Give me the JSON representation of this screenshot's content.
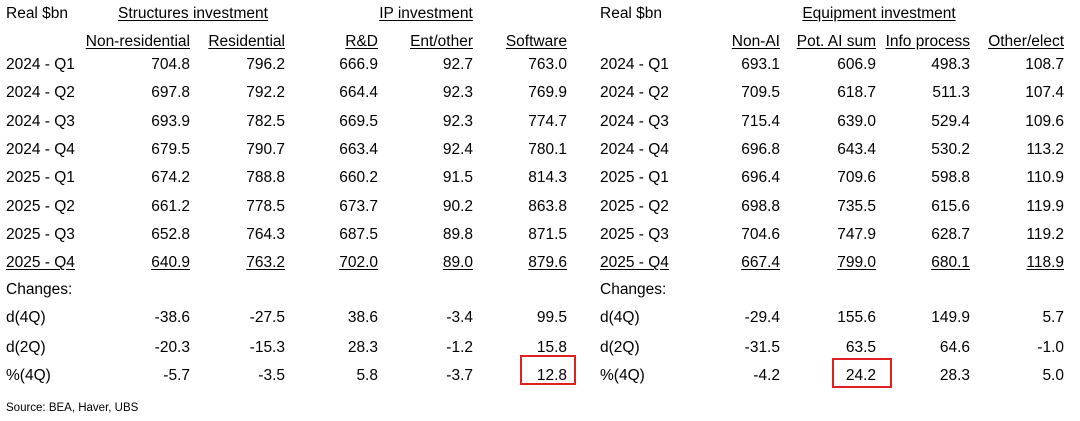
{
  "left_table": {
    "corner_label": "Real $bn",
    "groups": [
      "Structures investment",
      "IP investment"
    ],
    "columns": [
      "Non-residential",
      "Residential",
      "R&D",
      "Ent/other",
      "Software"
    ],
    "rows": [
      {
        "label": "2024 - Q1",
        "values": [
          "704.8",
          "796.2",
          "666.9",
          "92.7",
          "763.0"
        ]
      },
      {
        "label": "2024 - Q2",
        "values": [
          "697.8",
          "792.2",
          "664.4",
          "92.3",
          "769.9"
        ]
      },
      {
        "label": "2024 - Q3",
        "values": [
          "693.9",
          "782.5",
          "669.5",
          "92.3",
          "774.7"
        ]
      },
      {
        "label": "2024 - Q4",
        "values": [
          "679.5",
          "790.7",
          "663.4",
          "92.4",
          "780.1"
        ]
      },
      {
        "label": "2025 - Q1",
        "values": [
          "674.2",
          "788.8",
          "660.2",
          "91.5",
          "814.3"
        ]
      },
      {
        "label": "2025 - Q2",
        "values": [
          "661.2",
          "778.5",
          "673.7",
          "90.2",
          "863.8"
        ]
      },
      {
        "label": "2025 - Q3",
        "values": [
          "652.8",
          "764.3",
          "687.5",
          "89.8",
          "871.5"
        ]
      },
      {
        "label": "2025 - Q4",
        "values": [
          "640.9",
          "763.2",
          "702.0",
          "89.0",
          "879.6"
        ]
      }
    ],
    "changes_label": "Changes:",
    "changes": [
      {
        "label": "d(4Q)",
        "values": [
          "-38.6",
          "-27.5",
          "38.6",
          "-3.4",
          "99.5"
        ]
      },
      {
        "label": "d(2Q)",
        "values": [
          "-20.3",
          "-15.3",
          "28.3",
          "-1.2",
          "15.8"
        ]
      },
      {
        "label": "%(4Q)",
        "values": [
          "-5.7",
          "-3.5",
          "5.8",
          "-3.7",
          "12.8"
        ]
      }
    ]
  },
  "right_table": {
    "corner_label": "Real $bn",
    "groups": [
      "Equipment investment"
    ],
    "columns": [
      "Non-AI",
      "Pot. AI sum",
      "Info process",
      "Other/elect"
    ],
    "rows": [
      {
        "label": "2024 - Q1",
        "values": [
          "693.1",
          "606.9",
          "498.3",
          "108.7"
        ]
      },
      {
        "label": "2024 - Q2",
        "values": [
          "709.5",
          "618.7",
          "511.3",
          "107.4"
        ]
      },
      {
        "label": "2024 - Q3",
        "values": [
          "715.4",
          "639.0",
          "529.4",
          "109.6"
        ]
      },
      {
        "label": "2024 - Q4",
        "values": [
          "696.8",
          "643.4",
          "530.2",
          "113.2"
        ]
      },
      {
        "label": "2025 - Q1",
        "values": [
          "696.4",
          "709.6",
          "598.8",
          "110.9"
        ]
      },
      {
        "label": "2025 - Q2",
        "values": [
          "698.8",
          "735.5",
          "615.6",
          "119.9"
        ]
      },
      {
        "label": "2025 - Q3",
        "values": [
          "704.6",
          "747.9",
          "628.7",
          "119.2"
        ]
      },
      {
        "label": "2025 - Q4",
        "values": [
          "667.4",
          "799.0",
          "680.1",
          "118.9"
        ]
      }
    ],
    "changes_label": "Changes:",
    "changes": [
      {
        "label": "d(4Q)",
        "values": [
          "-29.4",
          "155.6",
          "149.9",
          "5.7"
        ]
      },
      {
        "label": "d(2Q)",
        "values": [
          "-31.5",
          "63.5",
          "64.6",
          "-1.0"
        ]
      },
      {
        "label": "%(4Q)",
        "values": [
          "-4.2",
          "24.2",
          "28.3",
          "5.0"
        ]
      }
    ]
  },
  "highlight_color": "#e02020",
  "source": "Source: BEA, Haver, UBS"
}
